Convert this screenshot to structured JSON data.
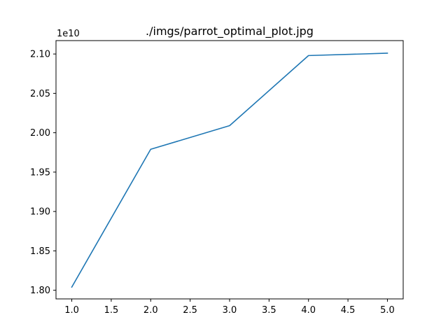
{
  "chart_data": {
    "type": "line",
    "title": "./imgs/parrot_optimal_plot.jpg",
    "xlabel": "",
    "ylabel": "",
    "y_offset_label": "1e10",
    "x": [
      1.0,
      2.0,
      3.0,
      4.0,
      5.0
    ],
    "series": [
      {
        "values": [
          1.804,
          1.979,
          2.009,
          2.098,
          2.101
        ],
        "color": "#1f77b4"
      }
    ],
    "xlim": [
      0.8,
      5.2
    ],
    "ylim": [
      1.789,
      2.117
    ],
    "x_ticks": [
      1.0,
      1.5,
      2.0,
      2.5,
      3.0,
      3.5,
      4.0,
      4.5,
      5.0
    ],
    "x_tick_labels": [
      "1.0",
      "1.5",
      "2.0",
      "2.5",
      "3.0",
      "3.5",
      "4.0",
      "4.5",
      "5.0"
    ],
    "y_ticks": [
      1.8,
      1.85,
      1.9,
      1.95,
      2.0,
      2.05,
      2.1
    ],
    "y_tick_labels": [
      "1.80",
      "1.85",
      "1.90",
      "1.95",
      "2.00",
      "2.05",
      "2.10"
    ],
    "grid": false,
    "legend": "none"
  }
}
